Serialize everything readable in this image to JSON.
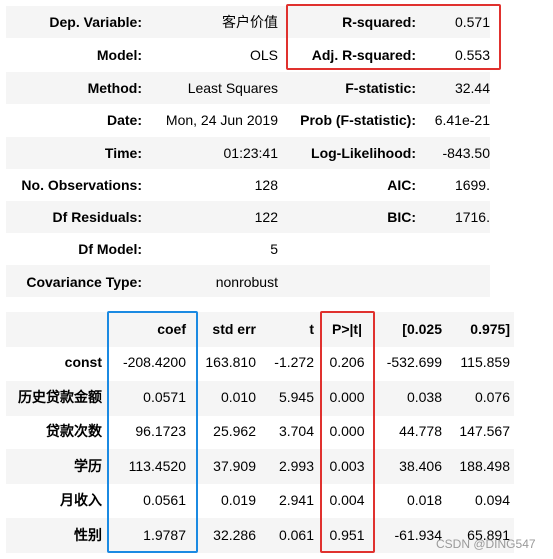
{
  "summary": {
    "rows": [
      {
        "l1": "Dep. Variable:",
        "v1": "客户价值",
        "l2": "R-squared:",
        "v2": "0.571"
      },
      {
        "l1": "Model:",
        "v1": "OLS",
        "l2": "Adj. R-squared:",
        "v2": "0.553"
      },
      {
        "l1": "Method:",
        "v1": "Least Squares",
        "l2": "F-statistic:",
        "v2": "32.44"
      },
      {
        "l1": "Date:",
        "v1": "Mon, 24 Jun 2019",
        "l2": "Prob (F-statistic):",
        "v2": "6.41e-21"
      },
      {
        "l1": "Time:",
        "v1": "01:23:41",
        "l2": "Log-Likelihood:",
        "v2": "-843.50"
      },
      {
        "l1": "No. Observations:",
        "v1": "128",
        "l2": "AIC:",
        "v2": "1699."
      },
      {
        "l1": "Df Residuals:",
        "v1": "122",
        "l2": "BIC:",
        "v2": "1716."
      },
      {
        "l1": "Df Model:",
        "v1": "5",
        "l2": "",
        "v2": ""
      },
      {
        "l1": "Covariance Type:",
        "v1": "nonrobust",
        "l2": "",
        "v2": ""
      }
    ]
  },
  "coef_table": {
    "headers": [
      "coef",
      "std err",
      "t",
      "P>|t|",
      "[0.025",
      "0.975]"
    ],
    "rows": [
      {
        "name": "const",
        "cells": [
          "-208.4200",
          "163.810",
          "-1.272",
          "0.206",
          "-532.699",
          "115.859"
        ]
      },
      {
        "name": "历史贷款金额",
        "cells": [
          "0.0571",
          "0.010",
          "5.945",
          "0.000",
          "0.038",
          "0.076"
        ]
      },
      {
        "name": "贷款次数",
        "cells": [
          "96.1723",
          "25.962",
          "3.704",
          "0.000",
          "44.778",
          "147.567"
        ]
      },
      {
        "name": "学历",
        "cells": [
          "113.4520",
          "37.909",
          "2.993",
          "0.003",
          "38.406",
          "188.498"
        ]
      },
      {
        "name": "月收入",
        "cells": [
          "0.0561",
          "0.019",
          "2.941",
          "0.004",
          "0.018",
          "0.094"
        ]
      },
      {
        "name": "性别",
        "cells": [
          "1.9787",
          "32.286",
          "0.061",
          "0.951",
          "-61.934",
          "65.891"
        ]
      }
    ]
  },
  "highlight_colors": {
    "red": "#e0312e",
    "blue": "#1b8ae2"
  },
  "watermark": "CSDN @DING547"
}
